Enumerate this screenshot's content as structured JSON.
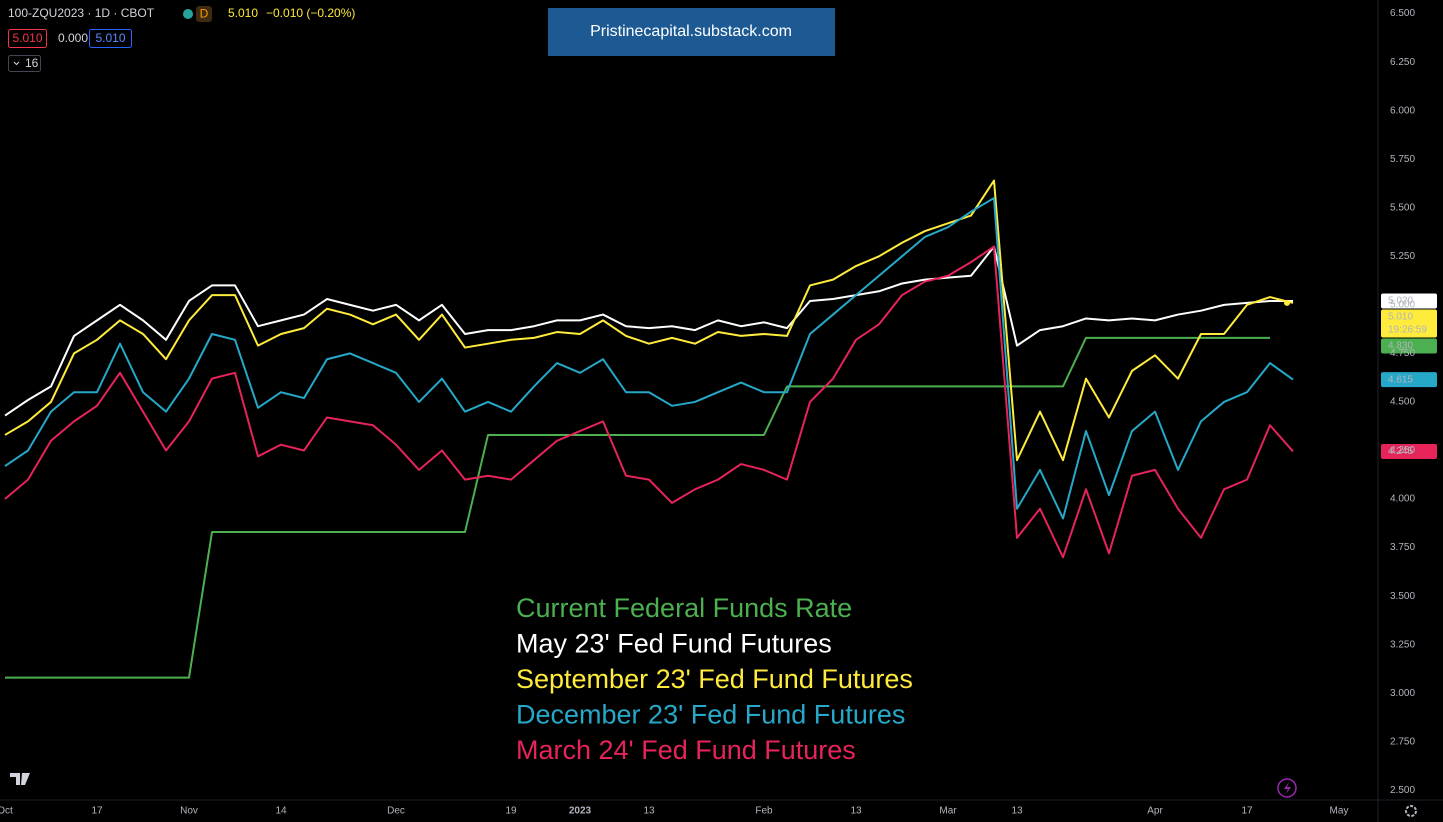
{
  "header": {
    "symbol": "100-ZQU2023 · 1D · CBOT",
    "badge": "D",
    "last": "5.010",
    "change": "−0.010 (−0.20%)",
    "boxes": [
      "5.010",
      "0.000",
      "5.010"
    ],
    "indicator": "16"
  },
  "watermark": "Pristinecapital.substack.com",
  "chart_data": {
    "type": "line",
    "categories": [
      "Oct",
      null,
      null,
      null,
      "17",
      null,
      null,
      null,
      "Nov",
      null,
      null,
      null,
      "14",
      null,
      null,
      null,
      null,
      "Dec",
      null,
      null,
      null,
      null,
      "19",
      null,
      null,
      "2023",
      null,
      null,
      "13",
      null,
      null,
      null,
      null,
      "Feb",
      null,
      null,
      null,
      "13",
      null,
      null,
      null,
      "Mar",
      null,
      null,
      "13",
      null,
      null,
      null,
      null,
      null,
      "Apr",
      null,
      null,
      null,
      "17",
      null,
      null,
      null,
      "May"
    ],
    "ylim": [
      2.45,
      6.57
    ],
    "yticks": [
      {
        "value": 2.5,
        "label": "2.500"
      },
      {
        "value": 2.75,
        "label": "2.750"
      },
      {
        "value": 3,
        "label": "3.000"
      },
      {
        "value": 3.25,
        "label": "3.250"
      },
      {
        "value": 3.5,
        "label": "3.500"
      },
      {
        "value": 3.75,
        "label": "3.750"
      },
      {
        "value": 4,
        "label": "4.000"
      },
      {
        "value": 4.25,
        "label": "4.250"
      },
      {
        "value": 4.5,
        "label": "4.500"
      },
      {
        "value": 4.75,
        "label": "4.750"
      },
      {
        "value": 5,
        "label": "5.000"
      },
      {
        "value": 5.25,
        "label": "5.250"
      },
      {
        "value": 5.5,
        "label": "5.500"
      },
      {
        "value": 5.75,
        "label": "5.750"
      },
      {
        "value": 6,
        "label": "6.000"
      },
      {
        "value": 6.25,
        "label": "6.250"
      },
      {
        "value": 6.5,
        "label": "6.500"
      }
    ],
    "grid": false,
    "countdown": "19:26:59",
    "series": [
      {
        "name": "Current Federal Funds Rate",
        "color": "#4caf50",
        "last_value_label": "4.830",
        "values": [
          3.08,
          3.08,
          3.08,
          3.08,
          3.08,
          3.08,
          3.08,
          3.08,
          3.08,
          3.83,
          3.83,
          3.83,
          3.83,
          3.83,
          3.83,
          3.83,
          3.83,
          3.83,
          3.83,
          3.83,
          3.83,
          4.33,
          4.33,
          4.33,
          4.33,
          4.33,
          4.33,
          4.33,
          4.33,
          4.33,
          4.33,
          4.33,
          4.33,
          4.33,
          4.58,
          4.58,
          4.58,
          4.58,
          4.58,
          4.58,
          4.58,
          4.58,
          4.58,
          4.58,
          4.58,
          4.58,
          4.58,
          4.83,
          4.83,
          4.83,
          4.83,
          4.83,
          4.83,
          4.83,
          4.83,
          4.83,
          null,
          null,
          null
        ]
      },
      {
        "name": "May 23' Fed Fund Futures",
        "color": "#ffffff",
        "last_value_label": "5.020",
        "values": [
          4.43,
          4.51,
          4.58,
          4.84,
          4.92,
          5.0,
          4.92,
          4.82,
          5.02,
          5.1,
          5.1,
          4.89,
          4.92,
          4.95,
          5.03,
          5.0,
          4.97,
          5.0,
          4.92,
          5.0,
          4.85,
          4.87,
          4.87,
          4.89,
          4.92,
          4.92,
          4.95,
          4.89,
          4.88,
          4.89,
          4.87,
          4.92,
          4.89,
          4.91,
          4.88,
          5.02,
          5.03,
          5.05,
          5.07,
          5.11,
          5.13,
          5.14,
          5.15,
          5.3,
          4.79,
          4.87,
          4.89,
          4.93,
          4.92,
          4.93,
          4.92,
          4.95,
          4.97,
          5.0,
          5.01,
          5.02,
          5.02,
          null,
          null
        ]
      },
      {
        "name": "September 23' Fed Fund Futures",
        "color": "#ffeb3b",
        "last_value_label": "5.010",
        "values": [
          4.33,
          4.4,
          4.5,
          4.75,
          4.82,
          4.92,
          4.85,
          4.72,
          4.92,
          5.05,
          5.05,
          4.79,
          4.85,
          4.88,
          4.98,
          4.95,
          4.9,
          4.95,
          4.82,
          4.95,
          4.78,
          4.8,
          4.82,
          4.83,
          4.86,
          4.85,
          4.92,
          4.84,
          4.8,
          4.83,
          4.8,
          4.86,
          4.84,
          4.85,
          4.84,
          5.1,
          5.13,
          5.2,
          5.25,
          5.32,
          5.38,
          5.42,
          5.46,
          5.64,
          4.2,
          4.45,
          4.2,
          4.62,
          4.42,
          4.66,
          4.74,
          4.62,
          4.85,
          4.85,
          5.0,
          5.04,
          5.01,
          null,
          null
        ]
      },
      {
        "name": "December 23' Fed Fund Futures",
        "color": "#26a8c8",
        "last_value_label": "4.615",
        "values": [
          4.17,
          4.25,
          4.45,
          4.55,
          4.55,
          4.8,
          4.55,
          4.45,
          4.62,
          4.85,
          4.82,
          4.47,
          4.55,
          4.52,
          4.72,
          4.75,
          4.7,
          4.65,
          4.5,
          4.62,
          4.45,
          4.5,
          4.45,
          4.58,
          4.7,
          4.65,
          4.72,
          4.55,
          4.55,
          4.48,
          4.5,
          4.55,
          4.6,
          4.55,
          4.55,
          4.85,
          4.95,
          5.05,
          5.15,
          5.25,
          5.35,
          5.4,
          5.48,
          5.55,
          3.95,
          4.15,
          3.9,
          4.35,
          4.02,
          4.35,
          4.45,
          4.15,
          4.4,
          4.5,
          4.55,
          4.7,
          4.615,
          null,
          null
        ]
      },
      {
        "name": "March 24' Fed Fund Futures",
        "color": "#e6245a",
        "last_value_label": "4.245",
        "values": [
          4.0,
          4.1,
          4.3,
          4.4,
          4.48,
          4.65,
          4.45,
          4.25,
          4.4,
          4.62,
          4.65,
          4.22,
          4.28,
          4.25,
          4.42,
          4.4,
          4.38,
          4.28,
          4.15,
          4.25,
          4.1,
          4.12,
          4.1,
          4.2,
          4.3,
          4.35,
          4.4,
          4.12,
          4.1,
          3.98,
          4.05,
          4.1,
          4.18,
          4.15,
          4.1,
          4.5,
          4.62,
          4.82,
          4.9,
          5.05,
          5.12,
          5.15,
          5.22,
          5.3,
          3.8,
          3.95,
          3.7,
          4.05,
          3.72,
          4.12,
          4.15,
          3.95,
          3.8,
          4.05,
          4.1,
          4.38,
          4.245,
          null,
          null
        ]
      }
    ]
  }
}
